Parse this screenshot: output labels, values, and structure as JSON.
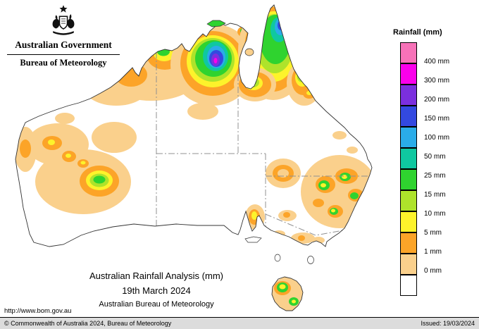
{
  "header": {
    "government": "Australian Government",
    "bureau": "Bureau of Meteorology"
  },
  "legend": {
    "title": "Rainfall (mm)",
    "entries": [
      {
        "label": "400 mm",
        "color": "#F772B8"
      },
      {
        "label": "300 mm",
        "color": "#FB00EB"
      },
      {
        "label": "200 mm",
        "color": "#7B2FDE"
      },
      {
        "label": "150 mm",
        "color": "#3349E0"
      },
      {
        "label": "100 mm",
        "color": "#2AACE8"
      },
      {
        "label": "50 mm",
        "color": "#0FC8A0"
      },
      {
        "label": "25 mm",
        "color": "#2FD32F"
      },
      {
        "label": "15 mm",
        "color": "#AEE32B"
      },
      {
        "label": "10 mm",
        "color": "#FDF32B"
      },
      {
        "label": "5 mm",
        "color": "#FCA428"
      },
      {
        "label": "1 mm",
        "color": "#FAD08C"
      },
      {
        "label": "0 mm",
        "color": "#FFFFFF"
      }
    ]
  },
  "caption": {
    "title": "Australian Rainfall Analysis (mm)",
    "date": "19th March 2024",
    "organisation": "Australian Bureau of Meteorology"
  },
  "footer": {
    "url": "http://www.bom.gov.au",
    "copyright": "© Commonwealth of Australia 2024, Bureau of Meteorology",
    "issued": "Issued: 19/03/2024"
  }
}
